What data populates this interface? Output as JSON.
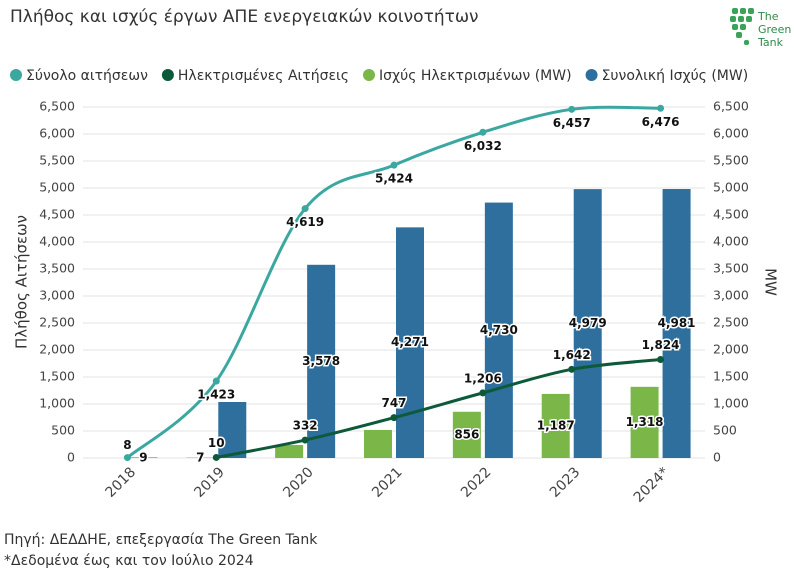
{
  "chart_data": {
    "type": "bar-line",
    "title": "Πλήθος και ισχύς έργων ΑΠΕ ενεργειακών κοινοτήτων",
    "logo": [
      "The",
      "Green",
      "Tank"
    ],
    "y_label": "Πλήθος Αιτήσεων",
    "y2_label": "MW",
    "source": "Πηγή: ΔΕΔΔΗΕ, επεξεργασία The Green Tank",
    "note": "*Δεδομένα έως και τον Ιούλιο 2024",
    "categories": [
      "2018",
      "2019",
      "2020",
      "2021",
      "2022",
      "2023",
      "2024*"
    ],
    "series": [
      {
        "name": "Σύνολο αιτήσεων",
        "kind": "line",
        "color": "#3aa8a0",
        "axis": "y",
        "values": [
          8,
          1423,
          4619,
          5424,
          6032,
          6457,
          6476
        ],
        "value_labels": [
          "8",
          "1,423",
          "4,619",
          "5,424",
          "6,032",
          "6,457",
          "6,476"
        ]
      },
      {
        "name": "Ηλεκτρισμένες Αιτήσεις",
        "kind": "line",
        "color": "#0d5a3a",
        "axis": "y",
        "values": [
          null,
          10,
          332,
          747,
          1206,
          1642,
          1824
        ],
        "value_labels": [
          null,
          "10",
          "332",
          "747",
          "1,206",
          "1,642",
          "1,824"
        ]
      },
      {
        "name": "Ισχύς Ηλεκτρισμένων (MW)",
        "kind": "bar",
        "color": "#7ab648",
        "axis": "y2",
        "values": [
          null,
          7,
          240,
          520,
          856,
          1187,
          1318
        ],
        "value_labels": [
          null,
          "7",
          null,
          null,
          "856",
          "1,187",
          "1,318"
        ]
      },
      {
        "name": "Συνολική Ισχύς (MW)",
        "kind": "bar",
        "color": "#2e6f9e",
        "axis": "y2",
        "values": [
          9,
          1037,
          3578,
          4271,
          4730,
          4979,
          4981
        ],
        "value_labels": [
          "9",
          null,
          "3,578",
          "4,271",
          "4,730",
          "4,979",
          "4,981"
        ]
      }
    ],
    "ylim": [
      0,
      6500
    ],
    "yticks": [
      0,
      500,
      {
        "value": 1000,
        "label": "1,000"
      },
      {
        "value": 1500,
        "label": "1,500"
      },
      {
        "value": 2000,
        "label": "2,000"
      },
      {
        "value": 2500,
        "label": "2,500"
      },
      {
        "value": 3000,
        "label": "3,000"
      },
      {
        "value": 3500,
        "label": "3,500"
      },
      {
        "value": 4000,
        "label": "4,000"
      },
      {
        "value": 4500,
        "label": "4,500"
      },
      {
        "value": 5000,
        "label": "5,000"
      },
      {
        "value": 5500,
        "label": "5,500"
      },
      {
        "value": 6000,
        "label": "6,000"
      },
      {
        "value": 6500,
        "label": "6,500"
      }
    ],
    "y2lim": [
      0,
      6500
    ],
    "y2ticks": [
      0,
      500,
      {
        "value": 1000,
        "label": "1,000"
      },
      {
        "value": 1500,
        "label": "1,500"
      },
      {
        "value": 2000,
        "label": "2,000"
      },
      {
        "value": 2500,
        "label": "2,500"
      },
      {
        "value": 3000,
        "label": "3,000"
      },
      {
        "value": 3500,
        "label": "3,500"
      },
      {
        "value": 4000,
        "label": "4,000"
      },
      {
        "value": 4500,
        "label": "4,500"
      },
      {
        "value": 5000,
        "label": "5,000"
      },
      {
        "value": 5500,
        "label": "5,500"
      },
      {
        "value": 6000,
        "label": "6,000"
      },
      {
        "value": 6500,
        "label": "6,500"
      }
    ],
    "grid": true
  }
}
